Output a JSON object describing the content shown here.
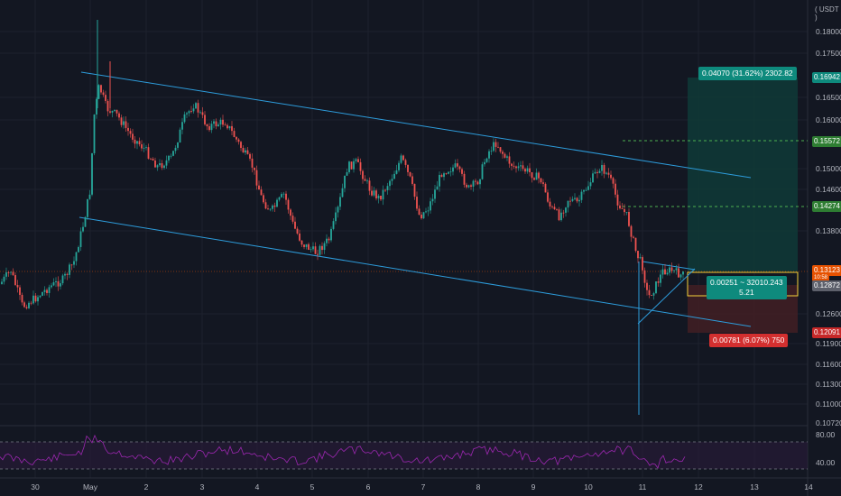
{
  "currency_label": "( USDT )",
  "y_axis_labels": [
    "0.18000",
    "0.17500",
    "0.16500",
    "0.16000",
    "0.15000",
    "0.14600",
    "0.13800",
    "0.12600",
    "0.11900",
    "0.11600",
    "0.11300",
    "0.11000",
    "0.10720"
  ],
  "x_axis_labels": [
    "30",
    "May",
    "2",
    "3",
    "4",
    "5",
    "6",
    "7",
    "8",
    "9",
    "10",
    "11",
    "12",
    "13",
    "14"
  ],
  "rsi_labels": [
    "80.00",
    "40.00"
  ],
  "price_tags": {
    "target": "0.16942",
    "level_high": "0.15572",
    "level_mid": "0.14274",
    "current": "0.13123",
    "current_sub": "10:58",
    "entry": "0.12872",
    "stop": "0.12091"
  },
  "position_boxes": {
    "target_text": "0.04070 (31.62%) 2302.82",
    "entry_text_line1": "0.00251 ~ 32010.243",
    "entry_text_line2": "5.21",
    "stop_text": "0.00781 (6.07%) 750"
  },
  "colors": {
    "background": "#131722",
    "up_candle": "#26a69a",
    "down_candle": "#ef5350",
    "channel": "#2d9cdb",
    "level_line": "#4caf50",
    "profit_zone": "#0f3a37",
    "loss_zone": "#3f1e24",
    "rsi": "#9c27b0"
  }
}
